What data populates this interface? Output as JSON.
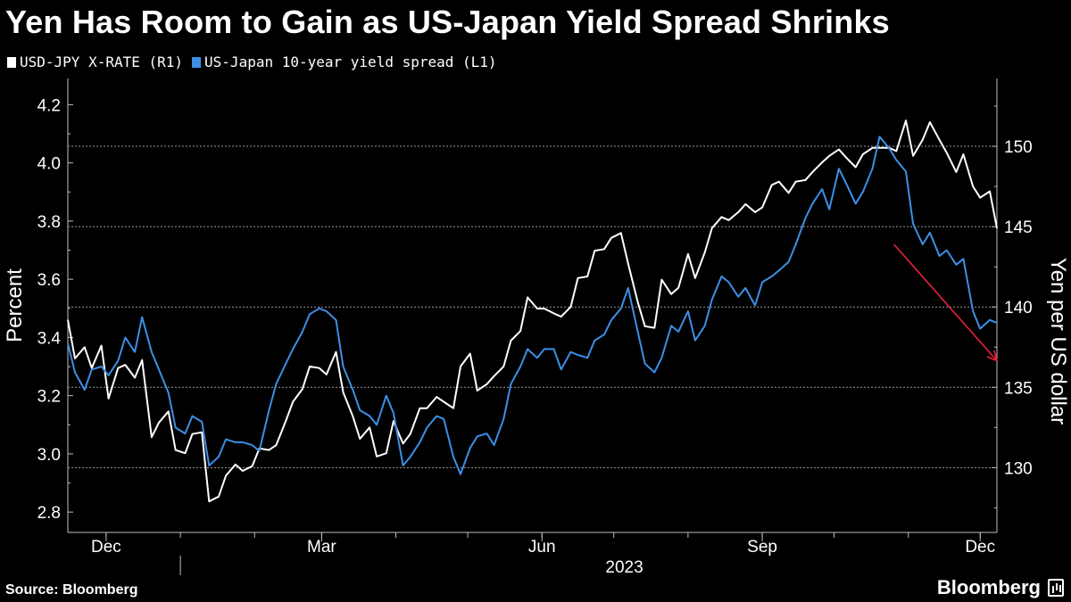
{
  "title": "Yen Has Room to Gain as US-Japan Yield Spread Shrinks",
  "source": "Source: Bloomberg",
  "brand": "Bloomberg",
  "chart_data": {
    "type": "line",
    "title": "Yen Has Room to Gain as US-Japan Yield Spread Shrinks",
    "left_axis": {
      "label": "Percent",
      "ticks": [
        2.8,
        3.0,
        3.2,
        3.4,
        3.6,
        3.8,
        4.0,
        4.2
      ],
      "tick_labels": [
        "2.8",
        "3.0",
        "3.2",
        "3.4",
        "3.6",
        "3.8",
        "4.0",
        "4.2"
      ],
      "range": [
        2.73,
        4.29
      ]
    },
    "right_axis": {
      "label": "Yen per US dollar",
      "ticks": [
        130,
        135,
        140,
        145,
        150
      ],
      "tick_labels": [
        "130",
        "135",
        "140",
        "145",
        "150"
      ],
      "range": [
        125.97,
        154.22
      ]
    },
    "x_axis": {
      "ticks": [
        "Dec",
        "Mar",
        "Jun",
        "Sep",
        "Dec"
      ],
      "tick_dates": [
        "2022-12-01",
        "2023-03-01",
        "2023-06-01",
        "2023-09-01",
        "2023-12-01"
      ],
      "year_label": "2023",
      "range": [
        "2022-11-15",
        "2023-12-08"
      ]
    },
    "grid": "horizontal dashed at right-axis ticks",
    "series": [
      {
        "name": "USD-JPY X-RATE (R1)",
        "axis": "right",
        "color": "#ffffff",
        "points": [
          [
            "2022-11-15",
            139.2
          ],
          [
            "2022-11-18",
            136.8
          ],
          [
            "2022-11-22",
            137.5
          ],
          [
            "2022-11-25",
            136.2
          ],
          [
            "2022-11-29",
            137.6
          ],
          [
            "2022-12-02",
            134.3
          ],
          [
            "2022-12-06",
            136.2
          ],
          [
            "2022-12-09",
            136.4
          ],
          [
            "2022-12-13",
            135.6
          ],
          [
            "2022-12-16",
            136.7
          ],
          [
            "2022-12-20",
            131.9
          ],
          [
            "2022-12-23",
            132.8
          ],
          [
            "2022-12-27",
            133.5
          ],
          [
            "2022-12-30",
            131.1
          ],
          [
            "2023-01-03",
            130.9
          ],
          [
            "2023-01-06",
            132.1
          ],
          [
            "2023-01-10",
            132.2
          ],
          [
            "2023-01-13",
            127.9
          ],
          [
            "2023-01-17",
            128.2
          ],
          [
            "2023-01-20",
            129.5
          ],
          [
            "2023-01-24",
            130.2
          ],
          [
            "2023-01-27",
            129.8
          ],
          [
            "2023-01-31",
            130.1
          ],
          [
            "2023-02-03",
            131.2
          ],
          [
            "2023-02-07",
            131.1
          ],
          [
            "2023-02-10",
            131.4
          ],
          [
            "2023-02-14",
            132.9
          ],
          [
            "2023-02-17",
            134.1
          ],
          [
            "2023-02-21",
            134.9
          ],
          [
            "2023-02-24",
            136.3
          ],
          [
            "2023-02-28",
            136.2
          ],
          [
            "2023-03-03",
            135.8
          ],
          [
            "2023-03-07",
            137.2
          ],
          [
            "2023-03-10",
            134.7
          ],
          [
            "2023-03-14",
            133.2
          ],
          [
            "2023-03-17",
            131.8
          ],
          [
            "2023-03-21",
            132.5
          ],
          [
            "2023-03-24",
            130.7
          ],
          [
            "2023-03-28",
            130.9
          ],
          [
            "2023-03-31",
            132.9
          ],
          [
            "2023-04-04",
            131.5
          ],
          [
            "2023-04-07",
            132.1
          ],
          [
            "2023-04-11",
            133.7
          ],
          [
            "2023-04-14",
            133.7
          ],
          [
            "2023-04-18",
            134.4
          ],
          [
            "2023-04-21",
            134.1
          ],
          [
            "2023-04-25",
            133.7
          ],
          [
            "2023-04-28",
            136.3
          ],
          [
            "2023-05-02",
            137.1
          ],
          [
            "2023-05-05",
            134.8
          ],
          [
            "2023-05-09",
            135.2
          ],
          [
            "2023-05-12",
            135.7
          ],
          [
            "2023-05-16",
            136.3
          ],
          [
            "2023-05-19",
            137.9
          ],
          [
            "2023-05-23",
            138.5
          ],
          [
            "2023-05-26",
            140.6
          ],
          [
            "2023-05-30",
            139.9
          ],
          [
            "2023-06-02",
            139.9
          ],
          [
            "2023-06-06",
            139.6
          ],
          [
            "2023-06-09",
            139.4
          ],
          [
            "2023-06-13",
            140.0
          ],
          [
            "2023-06-16",
            141.8
          ],
          [
            "2023-06-20",
            141.9
          ],
          [
            "2023-06-23",
            143.5
          ],
          [
            "2023-06-27",
            143.6
          ],
          [
            "2023-06-30",
            144.3
          ],
          [
            "2023-07-04",
            144.6
          ],
          [
            "2023-07-07",
            142.7
          ],
          [
            "2023-07-11",
            140.3
          ],
          [
            "2023-07-14",
            138.8
          ],
          [
            "2023-07-18",
            138.7
          ],
          [
            "2023-07-21",
            141.7
          ],
          [
            "2023-07-25",
            140.8
          ],
          [
            "2023-07-28",
            141.2
          ],
          [
            "2023-08-01",
            143.3
          ],
          [
            "2023-08-04",
            141.8
          ],
          [
            "2023-08-08",
            143.4
          ],
          [
            "2023-08-11",
            144.9
          ],
          [
            "2023-08-15",
            145.6
          ],
          [
            "2023-08-18",
            145.4
          ],
          [
            "2023-08-22",
            145.9
          ],
          [
            "2023-08-25",
            146.4
          ],
          [
            "2023-08-29",
            145.9
          ],
          [
            "2023-09-01",
            146.2
          ],
          [
            "2023-09-05",
            147.6
          ],
          [
            "2023-09-08",
            147.8
          ],
          [
            "2023-09-12",
            147.1
          ],
          [
            "2023-09-15",
            147.8
          ],
          [
            "2023-09-19",
            147.9
          ],
          [
            "2023-09-22",
            148.4
          ],
          [
            "2023-09-26",
            149.0
          ],
          [
            "2023-09-29",
            149.4
          ],
          [
            "2023-10-03",
            149.8
          ],
          [
            "2023-10-06",
            149.3
          ],
          [
            "2023-10-10",
            148.7
          ],
          [
            "2023-10-13",
            149.5
          ],
          [
            "2023-10-17",
            149.9
          ],
          [
            "2023-10-20",
            149.9
          ],
          [
            "2023-10-24",
            149.9
          ],
          [
            "2023-10-27",
            149.7
          ],
          [
            "2023-10-31",
            151.6
          ],
          [
            "2023-11-03",
            149.4
          ],
          [
            "2023-11-07",
            150.4
          ],
          [
            "2023-11-10",
            151.5
          ],
          [
            "2023-11-14",
            150.4
          ],
          [
            "2023-11-17",
            149.6
          ],
          [
            "2023-11-21",
            148.4
          ],
          [
            "2023-11-24",
            149.5
          ],
          [
            "2023-11-28",
            147.5
          ],
          [
            "2023-12-01",
            146.8
          ],
          [
            "2023-12-05",
            147.2
          ],
          [
            "2023-12-08",
            144.9
          ]
        ]
      },
      {
        "name": "US-Japan 10-year yield spread (L1)",
        "axis": "left",
        "color": "#3d8fe6",
        "points": [
          [
            "2022-11-15",
            3.38
          ],
          [
            "2022-11-18",
            3.28
          ],
          [
            "2022-11-22",
            3.22
          ],
          [
            "2022-11-25",
            3.29
          ],
          [
            "2022-11-29",
            3.3
          ],
          [
            "2022-12-02",
            3.27
          ],
          [
            "2022-12-06",
            3.32
          ],
          [
            "2022-12-09",
            3.4
          ],
          [
            "2022-12-13",
            3.35
          ],
          [
            "2022-12-16",
            3.47
          ],
          [
            "2022-12-20",
            3.35
          ],
          [
            "2022-12-23",
            3.29
          ],
          [
            "2022-12-27",
            3.21
          ],
          [
            "2022-12-30",
            3.09
          ],
          [
            "2023-01-03",
            3.07
          ],
          [
            "2023-01-06",
            3.13
          ],
          [
            "2023-01-10",
            3.11
          ],
          [
            "2023-01-13",
            2.96
          ],
          [
            "2023-01-17",
            2.99
          ],
          [
            "2023-01-20",
            3.05
          ],
          [
            "2023-01-24",
            3.04
          ],
          [
            "2023-01-27",
            3.04
          ],
          [
            "2023-01-31",
            3.03
          ],
          [
            "2023-02-03",
            3.01
          ],
          [
            "2023-02-07",
            3.15
          ],
          [
            "2023-02-10",
            3.24
          ],
          [
            "2023-02-14",
            3.31
          ],
          [
            "2023-02-17",
            3.36
          ],
          [
            "2023-02-21",
            3.42
          ],
          [
            "2023-02-24",
            3.48
          ],
          [
            "2023-02-28",
            3.5
          ],
          [
            "2023-03-03",
            3.49
          ],
          [
            "2023-03-07",
            3.46
          ],
          [
            "2023-03-10",
            3.3
          ],
          [
            "2023-03-14",
            3.22
          ],
          [
            "2023-03-17",
            3.15
          ],
          [
            "2023-03-21",
            3.13
          ],
          [
            "2023-03-24",
            3.1
          ],
          [
            "2023-03-28",
            3.2
          ],
          [
            "2023-03-31",
            3.14
          ],
          [
            "2023-04-04",
            2.96
          ],
          [
            "2023-04-07",
            2.99
          ],
          [
            "2023-04-11",
            3.04
          ],
          [
            "2023-04-14",
            3.09
          ],
          [
            "2023-04-18",
            3.13
          ],
          [
            "2023-04-21",
            3.12
          ],
          [
            "2023-04-25",
            2.99
          ],
          [
            "2023-04-28",
            2.93
          ],
          [
            "2023-05-02",
            3.02
          ],
          [
            "2023-05-05",
            3.06
          ],
          [
            "2023-05-09",
            3.07
          ],
          [
            "2023-05-12",
            3.03
          ],
          [
            "2023-05-16",
            3.12
          ],
          [
            "2023-05-19",
            3.24
          ],
          [
            "2023-05-23",
            3.3
          ],
          [
            "2023-05-26",
            3.36
          ],
          [
            "2023-05-30",
            3.33
          ],
          [
            "2023-06-02",
            3.36
          ],
          [
            "2023-06-06",
            3.36
          ],
          [
            "2023-06-09",
            3.29
          ],
          [
            "2023-06-13",
            3.35
          ],
          [
            "2023-06-16",
            3.34
          ],
          [
            "2023-06-20",
            3.33
          ],
          [
            "2023-06-23",
            3.39
          ],
          [
            "2023-06-27",
            3.41
          ],
          [
            "2023-06-30",
            3.46
          ],
          [
            "2023-07-04",
            3.5
          ],
          [
            "2023-07-07",
            3.57
          ],
          [
            "2023-07-11",
            3.42
          ],
          [
            "2023-07-14",
            3.31
          ],
          [
            "2023-07-18",
            3.28
          ],
          [
            "2023-07-21",
            3.33
          ],
          [
            "2023-07-25",
            3.44
          ],
          [
            "2023-07-28",
            3.42
          ],
          [
            "2023-08-01",
            3.49
          ],
          [
            "2023-08-04",
            3.39
          ],
          [
            "2023-08-08",
            3.44
          ],
          [
            "2023-08-11",
            3.53
          ],
          [
            "2023-08-15",
            3.61
          ],
          [
            "2023-08-18",
            3.59
          ],
          [
            "2023-08-22",
            3.54
          ],
          [
            "2023-08-25",
            3.57
          ],
          [
            "2023-08-29",
            3.51
          ],
          [
            "2023-09-01",
            3.59
          ],
          [
            "2023-09-05",
            3.61
          ],
          [
            "2023-09-08",
            3.63
          ],
          [
            "2023-09-12",
            3.66
          ],
          [
            "2023-09-15",
            3.72
          ],
          [
            "2023-09-19",
            3.81
          ],
          [
            "2023-09-22",
            3.86
          ],
          [
            "2023-09-26",
            3.91
          ],
          [
            "2023-09-29",
            3.84
          ],
          [
            "2023-10-03",
            3.98
          ],
          [
            "2023-10-06",
            3.93
          ],
          [
            "2023-10-10",
            3.86
          ],
          [
            "2023-10-13",
            3.9
          ],
          [
            "2023-10-17",
            3.98
          ],
          [
            "2023-10-20",
            4.09
          ],
          [
            "2023-10-24",
            4.05
          ],
          [
            "2023-10-27",
            4.01
          ],
          [
            "2023-10-31",
            3.97
          ],
          [
            "2023-11-03",
            3.79
          ],
          [
            "2023-11-07",
            3.72
          ],
          [
            "2023-11-10",
            3.76
          ],
          [
            "2023-11-14",
            3.68
          ],
          [
            "2023-11-17",
            3.7
          ],
          [
            "2023-11-21",
            3.65
          ],
          [
            "2023-11-24",
            3.67
          ],
          [
            "2023-11-28",
            3.49
          ],
          [
            "2023-12-01",
            3.43
          ],
          [
            "2023-12-05",
            3.46
          ],
          [
            "2023-12-08",
            3.45
          ]
        ]
      }
    ],
    "annotations": [
      {
        "type": "arrow",
        "color": "#e8213b",
        "from": [
          "2023-10-26",
          3.72
        ],
        "to": [
          "2023-12-08",
          3.32
        ]
      }
    ]
  }
}
